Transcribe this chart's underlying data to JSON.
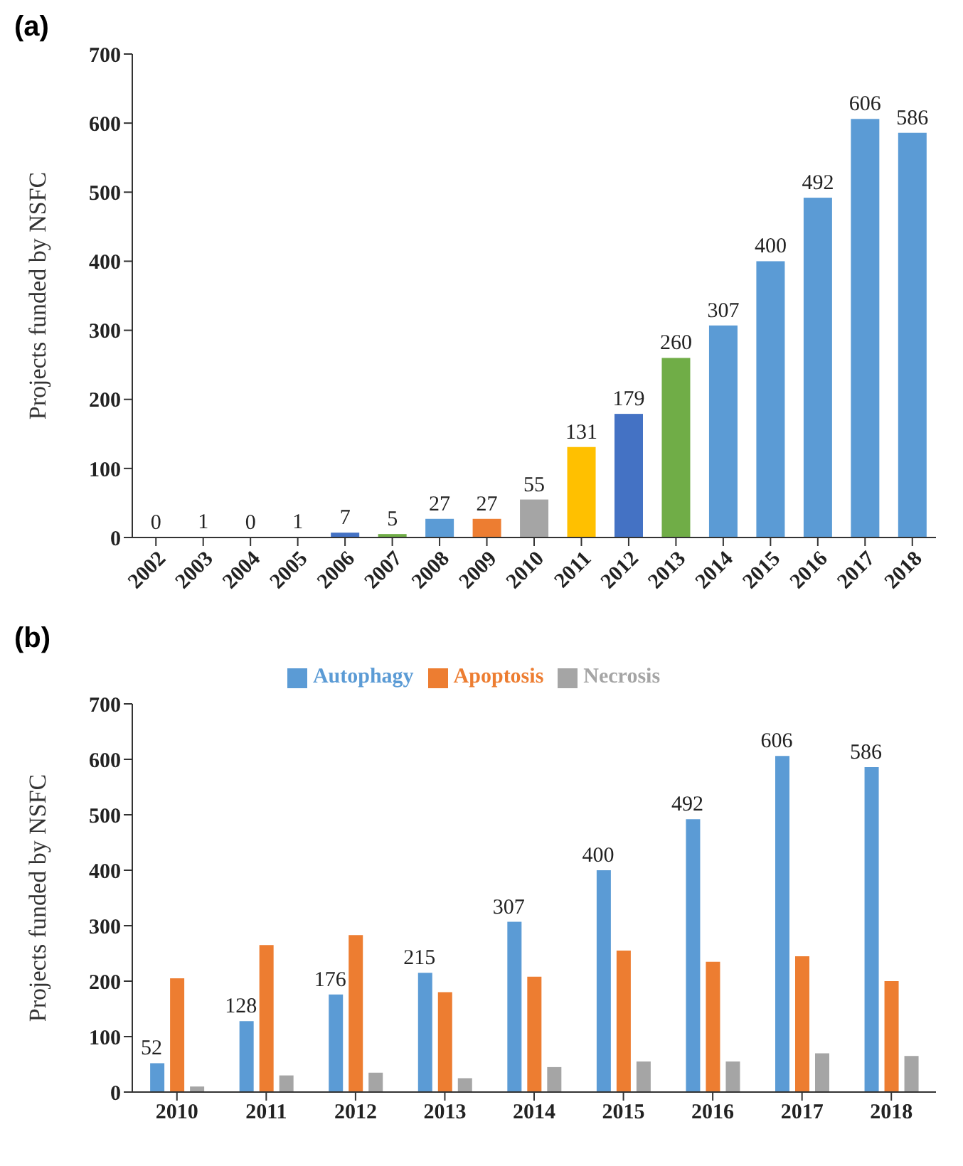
{
  "chart_data": [
    {
      "type": "bar",
      "title": "(a)",
      "ylabel": "Projects funded by NSFC",
      "categories": [
        "2002",
        "2003",
        "2004",
        "2005",
        "2006",
        "2007",
        "2008",
        "2009",
        "2010",
        "2011",
        "2012",
        "2013",
        "2014",
        "2015",
        "2016",
        "2017",
        "2018"
      ],
      "values": [
        0,
        1,
        0,
        1,
        7,
        5,
        27,
        27,
        55,
        131,
        179,
        260,
        307,
        400,
        492,
        606,
        586
      ],
      "colors": [
        "#5b9bd5",
        "#ed7d31",
        "#a5a5a5",
        "#ffc000",
        "#4472c4",
        "#70ad47",
        "#5b9bd5",
        "#ed7d31",
        "#a5a5a5",
        "#ffc000",
        "#4472c4",
        "#70ad47",
        "#5b9bd5",
        "#5b9bd5",
        "#5b9bd5",
        "#5b9bd5",
        "#5b9bd5"
      ],
      "ylim": [
        0,
        700
      ],
      "yticks": [
        0,
        100,
        200,
        300,
        400,
        500,
        600,
        700
      ],
      "data_labels": true
    },
    {
      "type": "bar",
      "title": "(b)",
      "ylabel": "Projects funded by NSFC",
      "legend": "top",
      "categories": [
        "2010",
        "2011",
        "2012",
        "2013",
        "2014",
        "2015",
        "2016",
        "2017",
        "2018"
      ],
      "series": [
        {
          "name": "Autophagy",
          "color": "#5b9bd5",
          "values": [
            52,
            128,
            176,
            215,
            307,
            400,
            492,
            606,
            586
          ],
          "value_labels": [
            "52",
            "128",
            "176",
            "215",
            "307",
            "400",
            "492",
            "606",
            "586"
          ]
        },
        {
          "name": "Apoptosis",
          "color": "#ed7d31",
          "values": [
            205,
            265,
            283,
            180,
            208,
            255,
            235,
            245,
            200
          ]
        },
        {
          "name": "Necrosis",
          "color": "#a5a5a5",
          "values": [
            10,
            30,
            35,
            25,
            45,
            55,
            55,
            70,
            65
          ]
        }
      ],
      "ylim": [
        0,
        700
      ],
      "yticks": [
        0,
        100,
        200,
        300,
        400,
        500,
        600,
        700
      ]
    }
  ]
}
